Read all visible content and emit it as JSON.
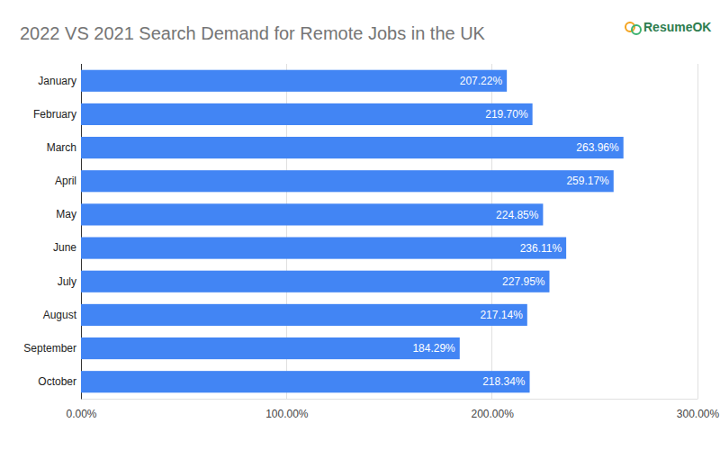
{
  "chart_data": {
    "type": "bar",
    "title": "2022 VS 2021 Search Demand for Remote Jobs in the UK",
    "annotations": [
      "ResumeOK"
    ],
    "orientation": "horizontal",
    "categories": [
      "January",
      "February",
      "March",
      "April",
      "May",
      "June",
      "July",
      "August",
      "September",
      "October"
    ],
    "values": [
      207.22,
      219.7,
      263.96,
      259.17,
      224.85,
      236.11,
      227.95,
      217.14,
      184.29,
      218.34
    ],
    "value_labels": [
      "207.22%",
      "219.70%",
      "263.96%",
      "259.17%",
      "224.85%",
      "236.11%",
      "227.95%",
      "217.14%",
      "184.29%",
      "218.34%"
    ],
    "color": "#4285f4",
    "xlim": [
      0,
      300
    ],
    "xticks": [
      {
        "value": 0,
        "label": "0.00%"
      },
      {
        "value": 100,
        "label": "100.00%"
      },
      {
        "value": 200,
        "label": "200.00%"
      },
      {
        "value": 300,
        "label": "300.00%"
      }
    ],
    "grid": true,
    "data_labels": true
  }
}
